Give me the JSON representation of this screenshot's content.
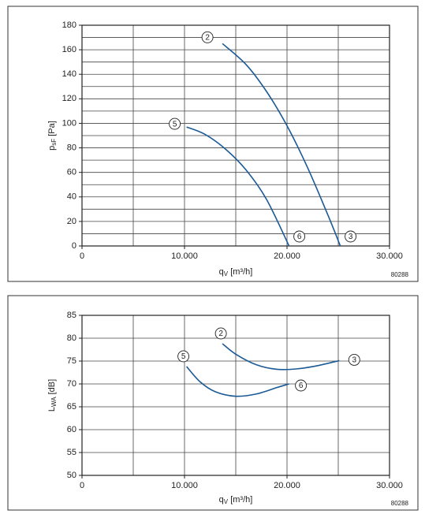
{
  "chart_data": [
    {
      "type": "line",
      "ylabel": [
        "p",
        "sF",
        " [Pa]"
      ],
      "xlabel": [
        "q",
        "V",
        " [m³/h]"
      ],
      "note": "80288",
      "xlim": [
        0,
        30000
      ],
      "xticks": [
        0,
        {
          "value": 10000,
          "label": "10.000"
        },
        {
          "value": 20000,
          "label": "20.000"
        },
        {
          "value": 30000,
          "label": "30.000"
        }
      ],
      "x_minor_ticks": [
        5000,
        15000,
        25000
      ],
      "ylim": [
        0,
        180
      ],
      "yticks": [
        0,
        20,
        40,
        60,
        80,
        100,
        120,
        140,
        160,
        180
      ],
      "y_minor_ticks": [
        10,
        30,
        50,
        70,
        90,
        110,
        130,
        150,
        170
      ],
      "grid": true,
      "series": [
        {
          "color": "#1b5a96",
          "start_label": "2",
          "end_label": "3",
          "x": [
            13700,
            16000,
            18000,
            20000,
            22000,
            24000,
            25200
          ],
          "values": [
            165,
            148,
            126,
            98,
            64,
            25,
            0
          ]
        },
        {
          "color": "#1b5a96",
          "start_label": "5",
          "end_label": "6",
          "x": [
            10200,
            12000,
            14000,
            16000,
            18000,
            20200
          ],
          "values": [
            97,
            91,
            79,
            62,
            38,
            0
          ]
        }
      ]
    },
    {
      "type": "line",
      "ylabel": [
        "L",
        "WA",
        " [dB]"
      ],
      "xlabel": [
        "q",
        "V",
        " [m³/h]"
      ],
      "note": "80288",
      "xlim": [
        0,
        30000
      ],
      "xticks": [
        0,
        {
          "value": 10000,
          "label": "10.000"
        },
        {
          "value": 20000,
          "label": "20.000"
        },
        {
          "value": 30000,
          "label": "30.000"
        }
      ],
      "x_minor_ticks": [
        5000,
        15000,
        25000
      ],
      "ylim": [
        50,
        85
      ],
      "yticks": [
        50,
        55,
        60,
        65,
        70,
        75,
        80,
        85
      ],
      "grid": true,
      "series": [
        {
          "color": "#1b5a96",
          "start_label": "2",
          "end_label": "3",
          "x": [
            13700,
            15000,
            17000,
            19000,
            21000,
            23000,
            25100
          ],
          "values": [
            78.8,
            76.5,
            74.2,
            73.2,
            73.3,
            74.0,
            75.1
          ]
        },
        {
          "color": "#1b5a96",
          "start_label": "5",
          "end_label": "6",
          "x": [
            10200,
            11500,
            13000,
            15000,
            17000,
            19000,
            20200
          ],
          "values": [
            73.8,
            70.5,
            68.3,
            67.3,
            67.8,
            69.2,
            70.0
          ]
        }
      ]
    }
  ]
}
